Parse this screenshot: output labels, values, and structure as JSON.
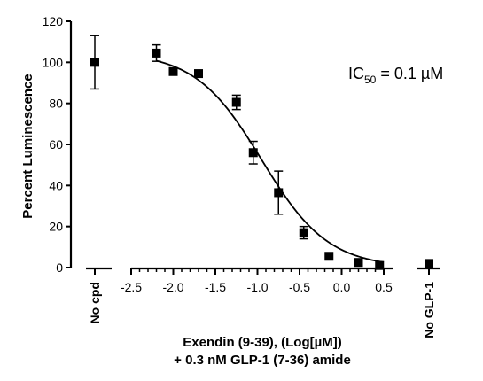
{
  "chart_data": {
    "type": "scatter",
    "title": "",
    "ylabel": "Percent Luminescence",
    "xlabel_line1": "Exendin (9-39), (Log[µM])",
    "xlabel_line2": "+ 0.3 nM GLP-1 (7-36) amide",
    "ylim": [
      0,
      120
    ],
    "y_ticks": [
      0,
      20,
      40,
      60,
      80,
      100,
      120
    ],
    "xlim": [
      -2.5,
      0.5
    ],
    "x_ticks": [
      -2.5,
      -2.0,
      -1.5,
      -1.0,
      -0.5,
      0.0,
      0.5
    ],
    "x_tick_labels": [
      "-2.5",
      "-2.0",
      "-1.5",
      "-1.0",
      "-0.5",
      "0.0",
      "0.5"
    ],
    "annotation": {
      "main": "IC",
      "sub": "50",
      "rest": " = 0.1 µM"
    },
    "controls": {
      "no_cpd": {
        "label": "No cpd",
        "y": 100,
        "err": 13
      },
      "no_glp1": {
        "label": "No GLP-1",
        "y": 2,
        "err": 0
      }
    },
    "points": [
      {
        "x": -2.2,
        "y": 104.5,
        "err": 4
      },
      {
        "x": -2.0,
        "y": 95.5,
        "err": 0
      },
      {
        "x": -1.7,
        "y": 94.5,
        "err": 0
      },
      {
        "x": -1.25,
        "y": 80.5,
        "err": 3.5
      },
      {
        "x": -1.05,
        "y": 56,
        "err": 5.5
      },
      {
        "x": -0.75,
        "y": 36.5,
        "err": 10.5
      },
      {
        "x": -0.45,
        "y": 17,
        "err": 3
      },
      {
        "x": -0.15,
        "y": 5.5,
        "err": 0
      },
      {
        "x": 0.2,
        "y": 2.5,
        "err": 0
      },
      {
        "x": 0.45,
        "y": 1,
        "err": 0
      }
    ],
    "fit": {
      "top": 105,
      "bottom": 0,
      "logIC50": -0.95,
      "hill": -1.1
    }
  }
}
